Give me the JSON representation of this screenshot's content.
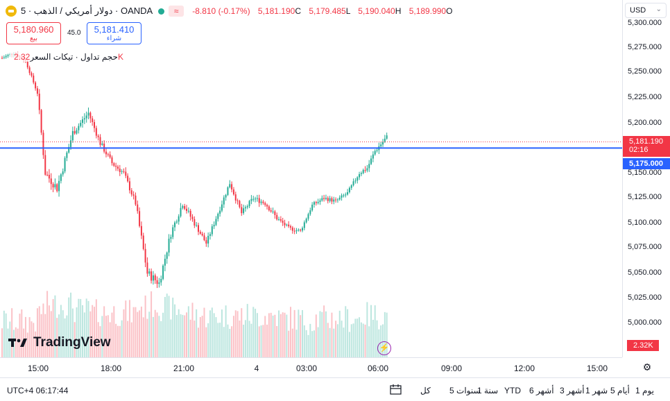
{
  "symbol": {
    "title": "دولار أمريكي / الذهب · 5 · OANDA",
    "indicator_glyph": "≈"
  },
  "ohlc": {
    "change": "-8.810 (-0.17%)",
    "close_label": "C",
    "close": "5,181.190",
    "low_label": "L",
    "low": "5,179.485",
    "high_label": "H",
    "high": "5,190.040",
    "open_label": "O",
    "open": "5,189.990"
  },
  "trade": {
    "sell_price": "5,180.960",
    "sell_label": "بيع",
    "spread": "45.0",
    "buy_price": "5,181.410",
    "buy_label": "شراء"
  },
  "volume_legend": {
    "label": "حجم تداول · تيكات السعر",
    "value": "2.32K"
  },
  "currency": {
    "label": "USD"
  },
  "price_axis": {
    "ticks": [
      "5,300.000",
      "5,275.000",
      "5,250.000",
      "5,225.000",
      "5,200.000",
      "5,150.000",
      "5,125.000",
      "5,100.000",
      "5,075.000",
      "5,050.000",
      "5,025.000",
      "5,000.000"
    ],
    "current_price": "5,181.190",
    "countdown": "02:16",
    "line_price": "5,175.000",
    "volume_label": "2.32K"
  },
  "time_axis": {
    "ticks": [
      "15:00",
      "18:00",
      "21:00",
      "4",
      "03:00",
      "06:00",
      "09:00",
      "12:00",
      "15:00"
    ]
  },
  "bottom_bar": {
    "clock": "UTC+4 06:17:44",
    "ranges": [
      "يوم 1",
      "أيام 5",
      "شهر 1",
      "أشهر 3",
      "أشهر 6",
      "YTD",
      "سنة 1",
      "سنوات 5",
      "كل"
    ]
  },
  "branding": {
    "logo_text": "TradingView"
  },
  "colors": {
    "up": "#22ab94",
    "down": "#f23645",
    "line": "#2962ff"
  },
  "chart_data": {
    "type": "candlestick",
    "interval_minutes": 5,
    "y_range": [
      4980,
      5305
    ],
    "hline": 5175.0,
    "last_price": 5181.19,
    "anchors": [
      [
        0,
        5265,
        0.3
      ],
      [
        6,
        5270,
        0.3
      ],
      [
        12,
        5262,
        0.3
      ],
      [
        18,
        5230,
        0.7
      ],
      [
        22,
        5150,
        0.9
      ],
      [
        28,
        5135,
        0.9
      ],
      [
        36,
        5190,
        0.7
      ],
      [
        44,
        5210,
        0.6
      ],
      [
        50,
        5180,
        0.6
      ],
      [
        56,
        5160,
        0.6
      ],
      [
        62,
        5150,
        0.6
      ],
      [
        68,
        5120,
        0.8
      ],
      [
        74,
        5050,
        0.9
      ],
      [
        80,
        5040,
        0.8
      ],
      [
        86,
        5090,
        0.7
      ],
      [
        92,
        5120,
        0.6
      ],
      [
        98,
        5100,
        0.5
      ],
      [
        104,
        5080,
        0.5
      ],
      [
        110,
        5110,
        0.5
      ],
      [
        116,
        5140,
        0.5
      ],
      [
        122,
        5110,
        0.5
      ],
      [
        128,
        5125,
        0.5
      ],
      [
        134,
        5120,
        0.5
      ],
      [
        140,
        5105,
        0.4
      ],
      [
        146,
        5095,
        0.4
      ],
      [
        152,
        5092,
        0.3
      ],
      [
        158,
        5118,
        0.4
      ],
      [
        164,
        5125,
        0.4
      ],
      [
        170,
        5122,
        0.4
      ],
      [
        176,
        5130,
        0.4
      ],
      [
        182,
        5150,
        0.5
      ],
      [
        186,
        5155,
        0.5
      ],
      [
        190,
        5172,
        0.5
      ],
      [
        196,
        5186,
        0.4
      ]
    ]
  }
}
